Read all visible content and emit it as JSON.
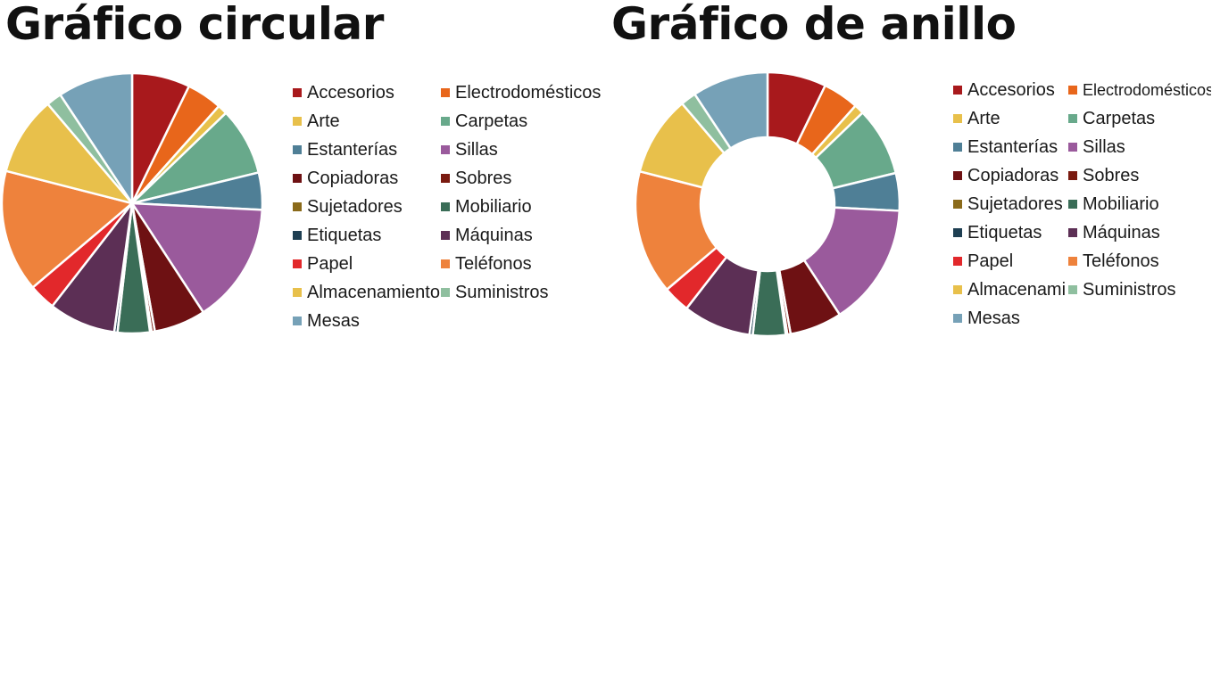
{
  "chart_data": [
    {
      "type": "pie",
      "title": "Gráfico circular",
      "legend_position": "right",
      "categories": [
        "Accesorios",
        "Electrodomésticos",
        "Arte",
        "Carpetas",
        "Estanterías",
        "Sillas",
        "Copiadoras",
        "Sobres",
        "Sujetadores",
        "Mobiliario",
        "Etiquetas",
        "Máquinas",
        "Papel",
        "Teléfonos",
        "Almacenamiento",
        "Suministros",
        "Mesas"
      ],
      "values": [
        7.2,
        4.4,
        1.2,
        8.4,
        4.6,
        15.0,
        6.4,
        0.4,
        0.2,
        4.0,
        0.4,
        8.3,
        3.3,
        15.2,
        9.8,
        1.9,
        9.3
      ],
      "colors": [
        "#a8191c",
        "#e8661b",
        "#e8c04b",
        "#68a98b",
        "#4f7f96",
        "#9a5a9c",
        "#6e1113",
        "#7a1a10",
        "#8a6a1a",
        "#3a6d57",
        "#1e3f52",
        "#5c2f55",
        "#e2282b",
        "#ee823c",
        "#e8c04b",
        "#8fbf9f",
        "#76a1b7"
      ]
    },
    {
      "type": "pie",
      "subtype": "donut",
      "title": "Gráfico de anillo",
      "legend_position": "right",
      "categories": [
        "Accesorios",
        "Electrodomésticos",
        "Arte",
        "Carpetas",
        "Estanterías",
        "Sillas",
        "Copiadoras",
        "Sobres",
        "Sujetadores",
        "Mobiliario",
        "Etiquetas",
        "Máquinas",
        "Papel",
        "Teléfonos",
        "Almacenamiento",
        "Suministros",
        "Mesas"
      ],
      "legend_labels": [
        "Accesorios",
        "Electrodomésticos",
        "Arte",
        "Carpetas",
        "Estanterías",
        "Sillas",
        "Copiadoras",
        "Sobres",
        "Sujetadores",
        "Mobiliario",
        "Etiquetas",
        "Máquinas",
        "Papel",
        "Teléfonos",
        "Almacenami",
        "Suministros",
        "Mesas"
      ],
      "values": [
        7.2,
        4.4,
        1.2,
        8.4,
        4.6,
        15.0,
        6.4,
        0.4,
        0.2,
        4.0,
        0.4,
        8.3,
        3.3,
        15.2,
        9.8,
        1.9,
        9.3
      ],
      "colors": [
        "#a8191c",
        "#e8661b",
        "#e8c04b",
        "#68a98b",
        "#4f7f96",
        "#9a5a9c",
        "#6e1113",
        "#7a1a10",
        "#8a6a1a",
        "#3a6d57",
        "#1e3f52",
        "#5c2f55",
        "#e2282b",
        "#ee823c",
        "#e8c04b",
        "#8fbf9f",
        "#76a1b7"
      ]
    }
  ]
}
